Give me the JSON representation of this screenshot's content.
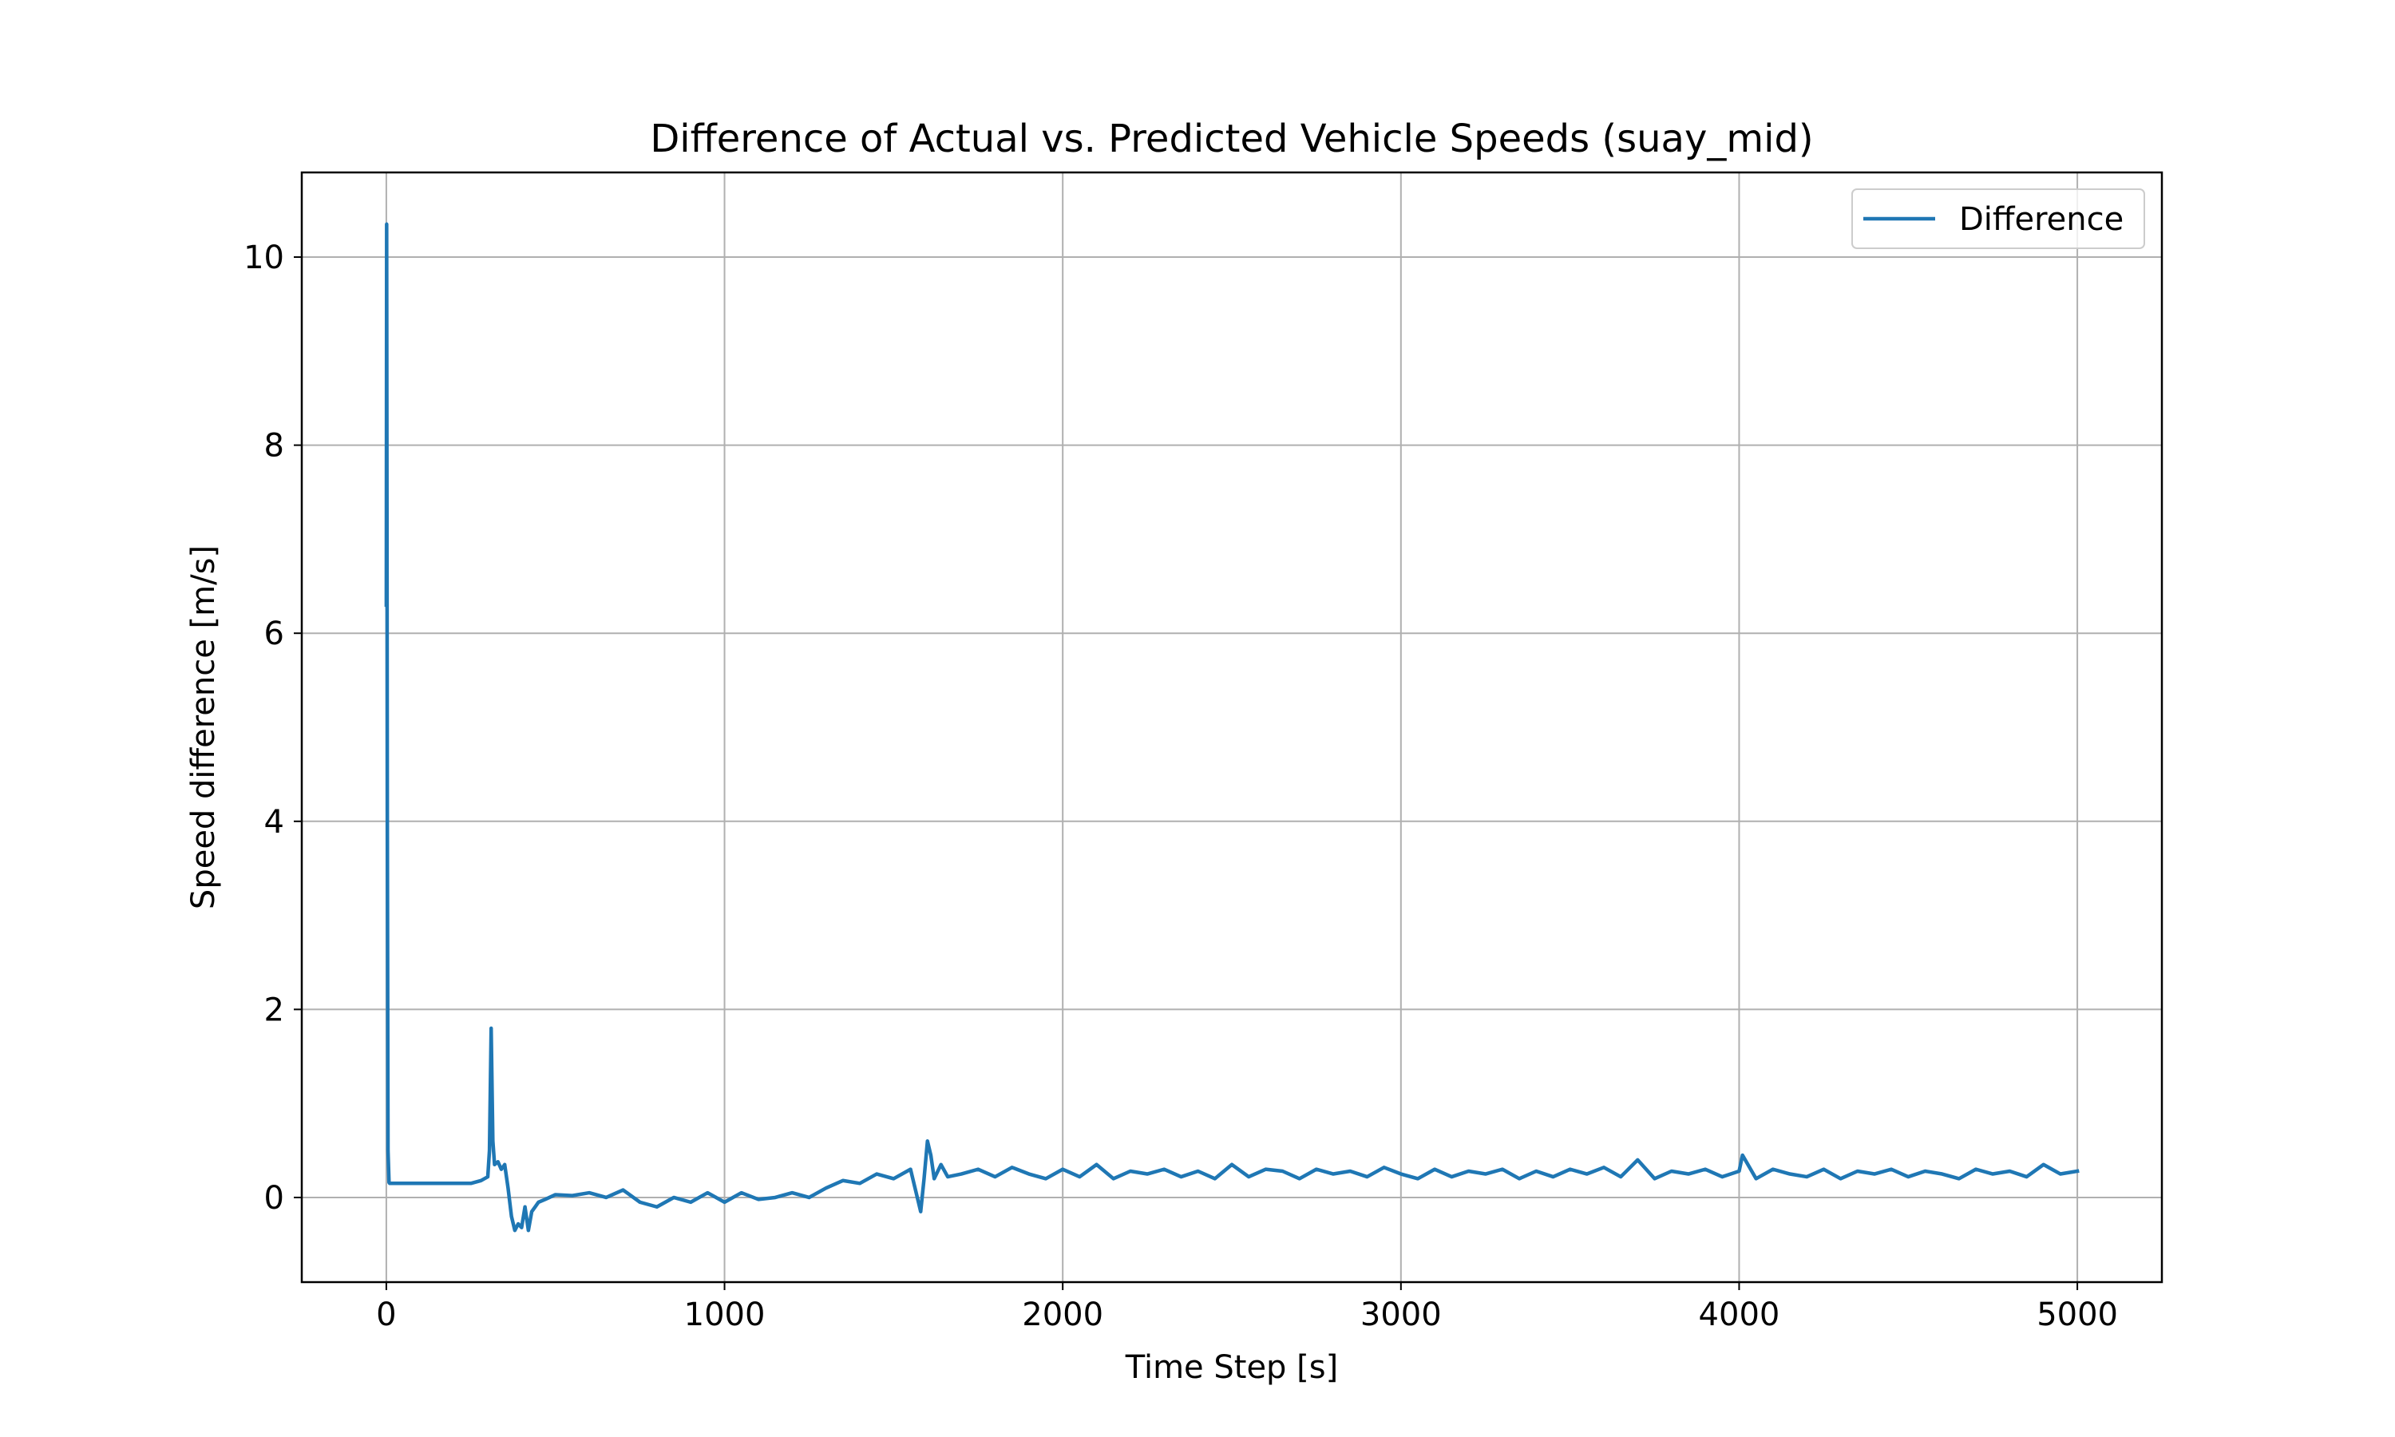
{
  "chart_data": {
    "type": "line",
    "title": "Difference of Actual vs. Predicted Vehicle Speeds (suay_mid)",
    "xlabel": "Time Step [s]",
    "ylabel": "Speed difference [m/s]",
    "xlim": [
      -250,
      5250
    ],
    "ylim": [
      -0.9,
      10.9
    ],
    "x_ticks": [
      0,
      1000,
      2000,
      3000,
      4000,
      5000
    ],
    "x_tick_labels": [
      "0",
      "1000",
      "2000",
      "3000",
      "4000",
      "5000"
    ],
    "y_ticks": [
      0,
      2,
      4,
      6,
      8,
      10
    ],
    "y_tick_labels": [
      "0",
      "2",
      "4",
      "6",
      "8",
      "10"
    ],
    "grid": true,
    "legend_position": "top-right",
    "series": [
      {
        "name": "Difference",
        "color": "#1f77b4",
        "x": [
          0,
          1,
          3,
          5,
          8,
          10,
          50,
          100,
          150,
          200,
          250,
          280,
          300,
          305,
          310,
          315,
          320,
          330,
          340,
          350,
          360,
          370,
          380,
          390,
          400,
          410,
          420,
          430,
          440,
          450,
          470,
          500,
          550,
          600,
          650,
          700,
          750,
          800,
          850,
          900,
          950,
          1000,
          1050,
          1100,
          1150,
          1200,
          1250,
          1300,
          1350,
          1400,
          1450,
          1500,
          1550,
          1570,
          1580,
          1590,
          1600,
          1610,
          1620,
          1640,
          1660,
          1700,
          1750,
          1800,
          1850,
          1900,
          1950,
          2000,
          2050,
          2100,
          2150,
          2200,
          2250,
          2300,
          2350,
          2400,
          2450,
          2500,
          2550,
          2600,
          2650,
          2700,
          2750,
          2800,
          2850,
          2900,
          2950,
          3000,
          3050,
          3100,
          3150,
          3200,
          3250,
          3300,
          3350,
          3400,
          3450,
          3500,
          3550,
          3600,
          3650,
          3700,
          3750,
          3800,
          3850,
          3900,
          3950,
          4000,
          4010,
          4050,
          4100,
          4150,
          4200,
          4250,
          4300,
          4350,
          4400,
          4450,
          4500,
          4550,
          4600,
          4650,
          4700,
          4750,
          4800,
          4850,
          4900,
          4950,
          5000
        ],
        "y": [
          6.3,
          10.35,
          4.0,
          0.5,
          0.16,
          0.15,
          0.15,
          0.15,
          0.15,
          0.15,
          0.15,
          0.18,
          0.22,
          0.5,
          1.8,
          0.6,
          0.35,
          0.38,
          0.3,
          0.35,
          0.1,
          -0.2,
          -0.35,
          -0.28,
          -0.32,
          -0.1,
          -0.35,
          -0.15,
          -0.1,
          -0.05,
          -0.02,
          0.03,
          0.02,
          0.05,
          0.0,
          0.08,
          -0.05,
          -0.1,
          0.0,
          -0.05,
          0.05,
          -0.05,
          0.05,
          -0.02,
          0.0,
          0.05,
          0.0,
          0.1,
          0.18,
          0.15,
          0.25,
          0.2,
          0.3,
          0.0,
          -0.15,
          0.2,
          0.6,
          0.45,
          0.2,
          0.35,
          0.22,
          0.25,
          0.3,
          0.22,
          0.32,
          0.25,
          0.2,
          0.3,
          0.22,
          0.35,
          0.2,
          0.28,
          0.25,
          0.3,
          0.22,
          0.28,
          0.2,
          0.35,
          0.22,
          0.3,
          0.28,
          0.2,
          0.3,
          0.25,
          0.28,
          0.22,
          0.32,
          0.25,
          0.2,
          0.3,
          0.22,
          0.28,
          0.25,
          0.3,
          0.2,
          0.28,
          0.22,
          0.3,
          0.25,
          0.32,
          0.22,
          0.4,
          0.2,
          0.28,
          0.25,
          0.3,
          0.22,
          0.28,
          0.45,
          0.2,
          0.3,
          0.25,
          0.22,
          0.3,
          0.2,
          0.28,
          0.25,
          0.3,
          0.22,
          0.28,
          0.25,
          0.2,
          0.3,
          0.25,
          0.28,
          0.22,
          0.35,
          0.25,
          0.28
        ]
      }
    ]
  }
}
